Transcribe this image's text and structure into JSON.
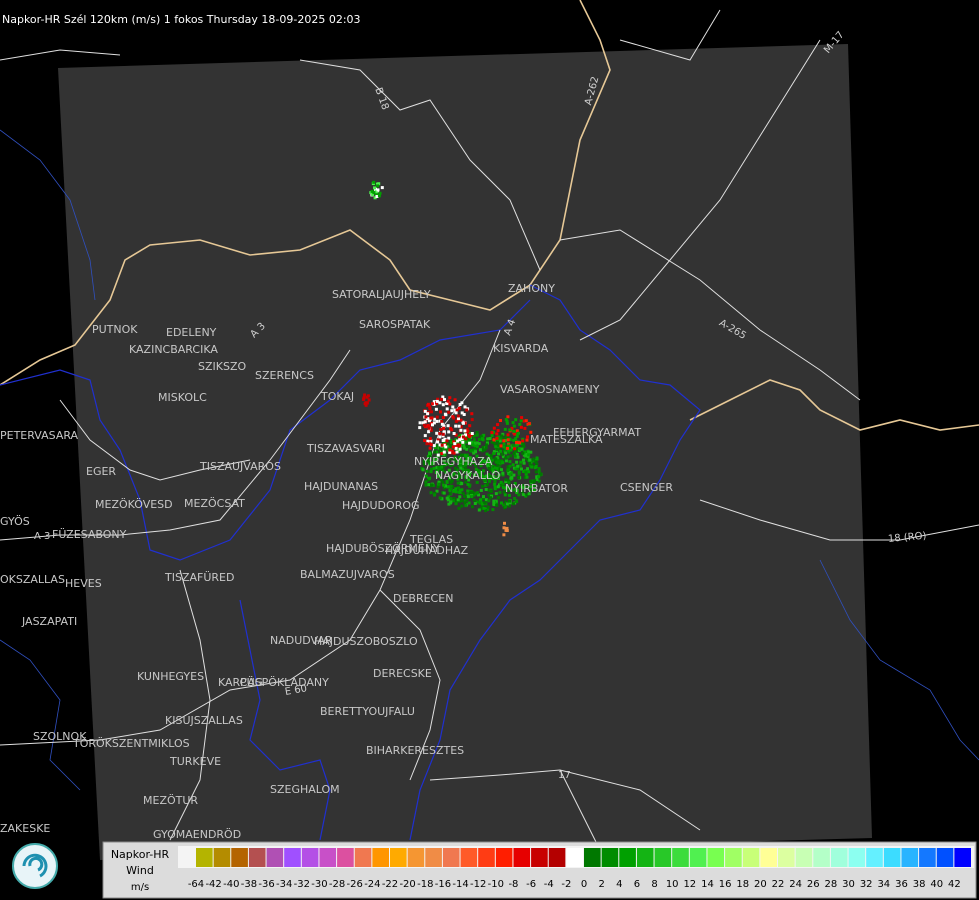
{
  "header": {
    "title": "Napkor-HR Szél 120km (m/s) 1 fokos Thursday 18-09-2025 02:03"
  },
  "map": {
    "cities": [
      "SATORALJAUJHELY",
      "ZAHONY",
      "SAROSPATAK",
      "PUTNOK",
      "EDELENY",
      "KAZINCBARCIKA",
      "SZIKSZO",
      "SZERENCS",
      "KISVARDA",
      "VASAROSNAMENY",
      "TOKAJ",
      "MISKOLC",
      "FEHERGYARMAT",
      "MATESZALKA",
      "TISZAVASVARI",
      "NYIREGYHAZA",
      "NAGYKALLO",
      "EGER",
      "TISZAUJVAROS",
      "HAJDUNANAS",
      "NYIRBATOR",
      "CSENGER",
      "HAJDUDOROG",
      "MEZÖKÖVESD",
      "MEZÖCSAT",
      "PETERVASARA",
      "GYÖS",
      "FÜZESABONY",
      "HAJDUBÖSZÖRMENY",
      "TEGLAS",
      "HAJDUHADHAZ",
      "TISZAFÜRED",
      "BALMAZUJVAROS",
      "DEBRECEN",
      "HEVES",
      "OKSZALLAS",
      "JASZAPATI",
      "NADUDVAR",
      "HAJDUSZOBOSZLO",
      "KUNHEGYES",
      "KARCAG",
      "PÜSPÖKLADANY",
      "DERECSKE",
      "BERETTYOUJFALU",
      "KISUJSZALLAS",
      "SZOLNOK",
      "TÖRÖKSZENTMIKLOS",
      "BIHARKERESZTES",
      "TURKEVE",
      "SZEGHALOM",
      "MEZÖTUR",
      "ZAKESKE",
      "GYOMAENDRÖD"
    ],
    "roads": [
      "B 18",
      "A-262",
      "M-17",
      "A-265",
      "A 3",
      "A 4",
      "18 (RO)",
      "17",
      "A 3",
      "E 60"
    ]
  },
  "legend": {
    "title": "Napkor-HR",
    "subtitle": "Wind",
    "unit": "m/s",
    "colors": [
      "#b4b400",
      "#b48c00",
      "#b46400",
      "#b45050",
      "#b050b4",
      "#a050ff",
      "#b450e6",
      "#c850c8",
      "#dc50a0",
      "#f07850",
      "#ff9600",
      "#ffaa00",
      "#f59632",
      "#f08c46",
      "#f07850",
      "#ff5a28",
      "#ff3c14",
      "#ff1e00",
      "#e60000",
      "#c80000",
      "#b40000",
      "#ffffff",
      "#007800",
      "#008c00",
      "#00a000",
      "#14b414",
      "#28c828",
      "#3cdc3c",
      "#50f050",
      "#78ff50",
      "#a0ff64",
      "#c8ff78",
      "#ffff96",
      "#dcffa0",
      "#c8ffb4",
      "#b4ffc8",
      "#a0ffdc",
      "#8cfff0",
      "#64f0ff",
      "#3cdcff",
      "#28b4ff",
      "#1478ff",
      "#0050ff",
      "#0000ff"
    ],
    "ticks": [
      -64,
      -42,
      -40,
      -38,
      -36,
      -34,
      -32,
      -30,
      -28,
      -26,
      -24,
      -22,
      -20,
      -18,
      -16,
      -14,
      -12,
      -10,
      -8,
      -6,
      -4,
      -2,
      0,
      2,
      4,
      6,
      8,
      10,
      12,
      14,
      16,
      18,
      20,
      22,
      24,
      26,
      28,
      30,
      32,
      34,
      36,
      38,
      40,
      42
    ]
  }
}
